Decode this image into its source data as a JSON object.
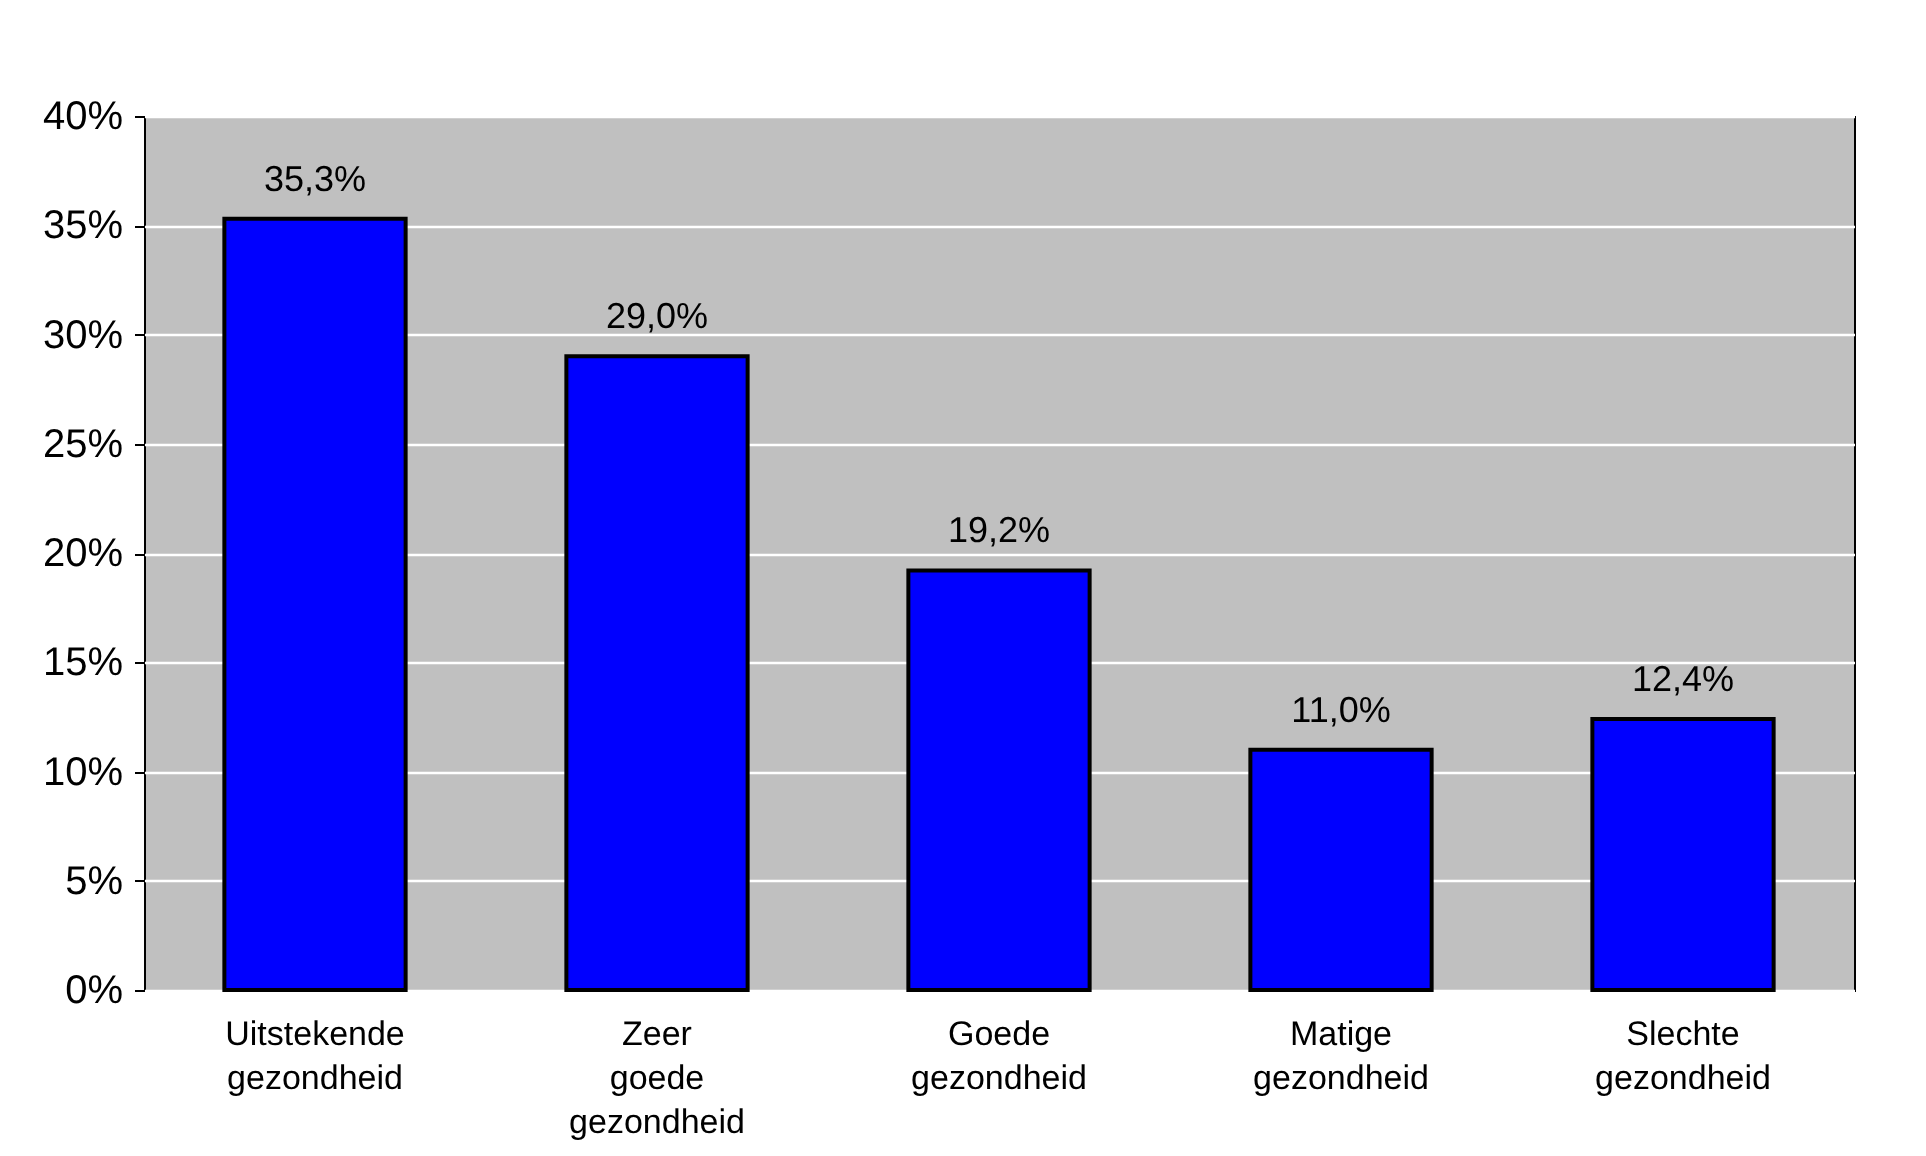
{
  "chart_data": {
    "type": "bar",
    "categories": [
      "Uitstekende gezondheid",
      "Zeer goede gezondheid",
      "Goede gezondheid",
      "Matige gezondheid",
      "Slechte gezondheid"
    ],
    "values": [
      35.3,
      29.0,
      19.2,
      11.0,
      12.4
    ],
    "value_labels": [
      "35,3%",
      "29,0%",
      "19,2%",
      "11,0%",
      "12,4%"
    ],
    "color": "#0000ff",
    "ylim": [
      0,
      40
    ],
    "yticks": [
      {
        "value": 0,
        "label": "0%"
      },
      {
        "value": 5,
        "label": "5%"
      },
      {
        "value": 10,
        "label": "10%"
      },
      {
        "value": 15,
        "label": "15%"
      },
      {
        "value": 20,
        "label": "20%"
      },
      {
        "value": 25,
        "label": "25%"
      },
      {
        "value": 30,
        "label": "30%"
      },
      {
        "value": 35,
        "label": "35%"
      },
      {
        "value": 40,
        "label": "40%"
      }
    ],
    "grid": "y"
  }
}
